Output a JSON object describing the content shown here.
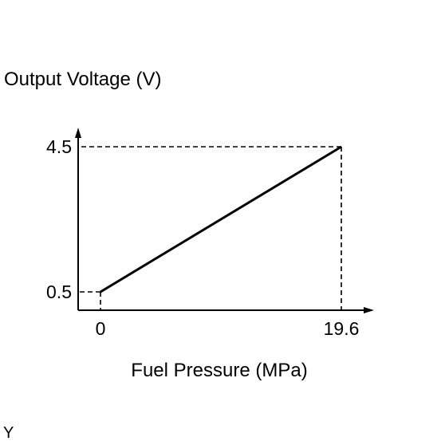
{
  "chart_data": {
    "type": "line",
    "xlabel": "Fuel Pressure (MPa)",
    "ylabel": "Output Voltage (V)",
    "x_ticks": [
      "0",
      "19.6"
    ],
    "y_ticks": [
      "0.5",
      "4.5"
    ],
    "series": [
      {
        "x": [
          0,
          19.6
        ],
        "y": [
          0.5,
          4.5
        ]
      }
    ],
    "reference_lines": [
      {
        "from": [
          0,
          0.5
        ],
        "to": [
          0,
          0
        ]
      },
      {
        "from": [
          0,
          0.5
        ],
        "to": [
          0,
          0.5
        ]
      },
      {
        "from": [
          19.6,
          4.5
        ],
        "to": [
          19.6,
          0
        ]
      },
      {
        "from": [
          19.6,
          4.5
        ],
        "to": [
          0,
          4.5
        ]
      }
    ],
    "grid": false,
    "line_color": "#000000"
  },
  "corner_label": "Y"
}
